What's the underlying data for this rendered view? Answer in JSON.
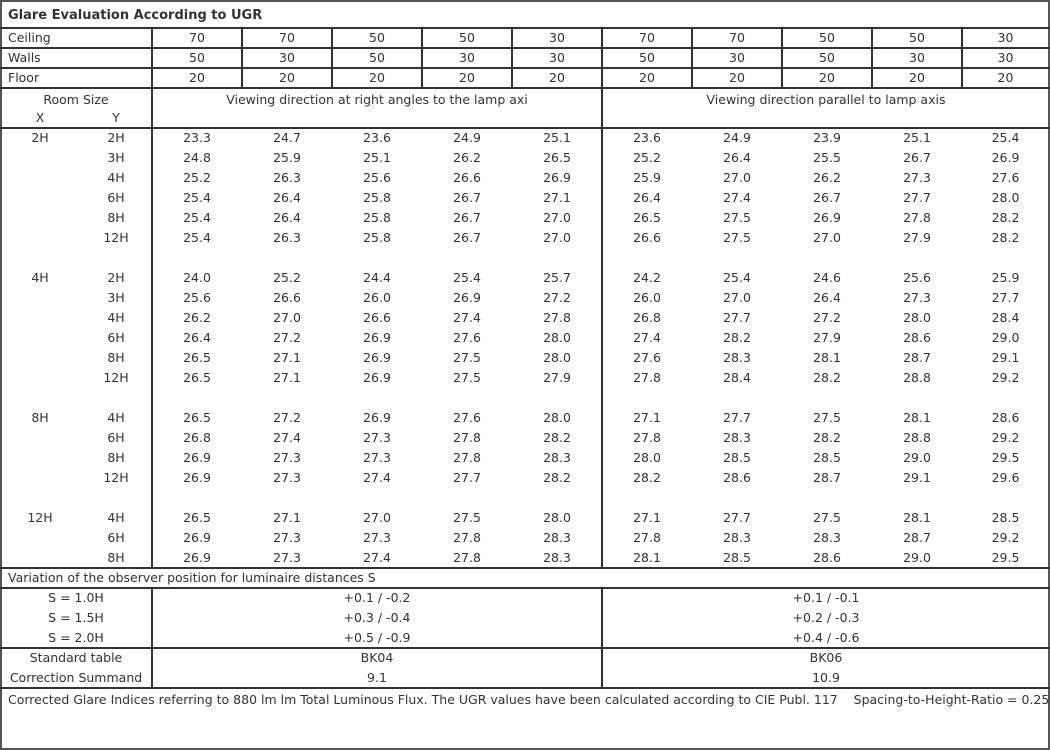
{
  "title": "Glare Evaluation According to UGR",
  "reflectances": [
    {
      "label": "Ceiling",
      "values": [
        "70",
        "70",
        "50",
        "50",
        "30",
        "70",
        "70",
        "50",
        "50",
        "30"
      ]
    },
    {
      "label": "Walls",
      "values": [
        "50",
        "30",
        "50",
        "30",
        "30",
        "50",
        "30",
        "50",
        "30",
        "30"
      ]
    },
    {
      "label": "Floor",
      "values": [
        "20",
        "20",
        "20",
        "20",
        "20",
        "20",
        "20",
        "20",
        "20",
        "20"
      ]
    }
  ],
  "room_size_label": "Room Size",
  "x_label": "X",
  "y_label": "Y",
  "perpendicular_header": "Viewing direction at right angles to the lamp axi",
  "parallel_header": "Viewing direction parallel to lamp axis",
  "groups": [
    {
      "x": "2H",
      "rows": [
        {
          "y": "2H",
          "values": [
            "23.3",
            "24.7",
            "23.6",
            "24.9",
            "25.1",
            "23.6",
            "24.9",
            "23.9",
            "25.1",
            "25.4"
          ]
        },
        {
          "y": "3H",
          "values": [
            "24.8",
            "25.9",
            "25.1",
            "26.2",
            "26.5",
            "25.2",
            "26.4",
            "25.5",
            "26.7",
            "26.9"
          ]
        },
        {
          "y": "4H",
          "values": [
            "25.2",
            "26.3",
            "25.6",
            "26.6",
            "26.9",
            "25.9",
            "27.0",
            "26.2",
            "27.3",
            "27.6"
          ]
        },
        {
          "y": "6H",
          "values": [
            "25.4",
            "26.4",
            "25.8",
            "26.7",
            "27.1",
            "26.4",
            "27.4",
            "26.7",
            "27.7",
            "28.0"
          ]
        },
        {
          "y": "8H",
          "values": [
            "25.4",
            "26.4",
            "25.8",
            "26.7",
            "27.0",
            "26.5",
            "27.5",
            "26.9",
            "27.8",
            "28.2"
          ]
        },
        {
          "y": "12H",
          "values": [
            "25.4",
            "26.3",
            "25.8",
            "26.7",
            "27.0",
            "26.6",
            "27.5",
            "27.0",
            "27.9",
            "28.2"
          ]
        }
      ]
    },
    {
      "x": "4H",
      "rows": [
        {
          "y": "2H",
          "values": [
            "24.0",
            "25.2",
            "24.4",
            "25.4",
            "25.7",
            "24.2",
            "25.4",
            "24.6",
            "25.6",
            "25.9"
          ]
        },
        {
          "y": "3H",
          "values": [
            "25.6",
            "26.6",
            "26.0",
            "26.9",
            "27.2",
            "26.0",
            "27.0",
            "26.4",
            "27.3",
            "27.7"
          ]
        },
        {
          "y": "4H",
          "values": [
            "26.2",
            "27.0",
            "26.6",
            "27.4",
            "27.8",
            "26.8",
            "27.7",
            "27.2",
            "28.0",
            "28.4"
          ]
        },
        {
          "y": "6H",
          "values": [
            "26.4",
            "27.2",
            "26.9",
            "27.6",
            "28.0",
            "27.4",
            "28.2",
            "27.9",
            "28.6",
            "29.0"
          ]
        },
        {
          "y": "8H",
          "values": [
            "26.5",
            "27.1",
            "26.9",
            "27.5",
            "28.0",
            "27.6",
            "28.3",
            "28.1",
            "28.7",
            "29.1"
          ]
        },
        {
          "y": "12H",
          "values": [
            "26.5",
            "27.1",
            "26.9",
            "27.5",
            "27.9",
            "27.8",
            "28.4",
            "28.2",
            "28.8",
            "29.2"
          ]
        }
      ]
    },
    {
      "x": "8H",
      "rows": [
        {
          "y": "4H",
          "values": [
            "26.5",
            "27.2",
            "26.9",
            "27.6",
            "28.0",
            "27.1",
            "27.7",
            "27.5",
            "28.1",
            "28.6"
          ]
        },
        {
          "y": "6H",
          "values": [
            "26.8",
            "27.4",
            "27.3",
            "27.8",
            "28.2",
            "27.8",
            "28.3",
            "28.2",
            "28.8",
            "29.2"
          ]
        },
        {
          "y": "8H",
          "values": [
            "26.9",
            "27.3",
            "27.3",
            "27.8",
            "28.3",
            "28.0",
            "28.5",
            "28.5",
            "29.0",
            "29.5"
          ]
        },
        {
          "y": "12H",
          "values": [
            "26.9",
            "27.3",
            "27.4",
            "27.7",
            "28.2",
            "28.2",
            "28.6",
            "28.7",
            "29.1",
            "29.6"
          ]
        }
      ]
    },
    {
      "x": "12H",
      "rows": [
        {
          "y": "4H",
          "values": [
            "26.5",
            "27.1",
            "27.0",
            "27.5",
            "28.0",
            "27.1",
            "27.7",
            "27.5",
            "28.1",
            "28.5"
          ]
        },
        {
          "y": "6H",
          "values": [
            "26.9",
            "27.3",
            "27.3",
            "27.8",
            "28.3",
            "27.8",
            "28.3",
            "28.3",
            "28.7",
            "29.2"
          ]
        },
        {
          "y": "8H",
          "values": [
            "26.9",
            "27.3",
            "27.4",
            "27.8",
            "28.3",
            "28.1",
            "28.5",
            "28.6",
            "29.0",
            "29.5"
          ]
        }
      ]
    }
  ],
  "variation_title": "Variation of the observer position for luminaire distances S",
  "variations": [
    {
      "label": "S = 1.0H",
      "perpendicular": "+0.1 / -0.2",
      "parallel": "+0.1 / -0.1"
    },
    {
      "label": "S = 1.5H",
      "perpendicular": "+0.3 / -0.4",
      "parallel": "+0.2 / -0.3"
    },
    {
      "label": "S = 2.0H",
      "perpendicular": "+0.5 / -0.9",
      "parallel": "+0.4 / -0.6"
    }
  ],
  "standard_table": {
    "label": "Standard table",
    "perpendicular": "BK04",
    "parallel": "BK06"
  },
  "correction_summand": {
    "label": "Correction Summand",
    "perpendicular": "9.1",
    "parallel": "10.9"
  },
  "footnote": "Corrected Glare Indices referring to 880 lm lm Total Luminous Flux. The UGR values have been calculated according to CIE Publ. 117    Spacing-to-Height-Ratio = 0.25."
}
